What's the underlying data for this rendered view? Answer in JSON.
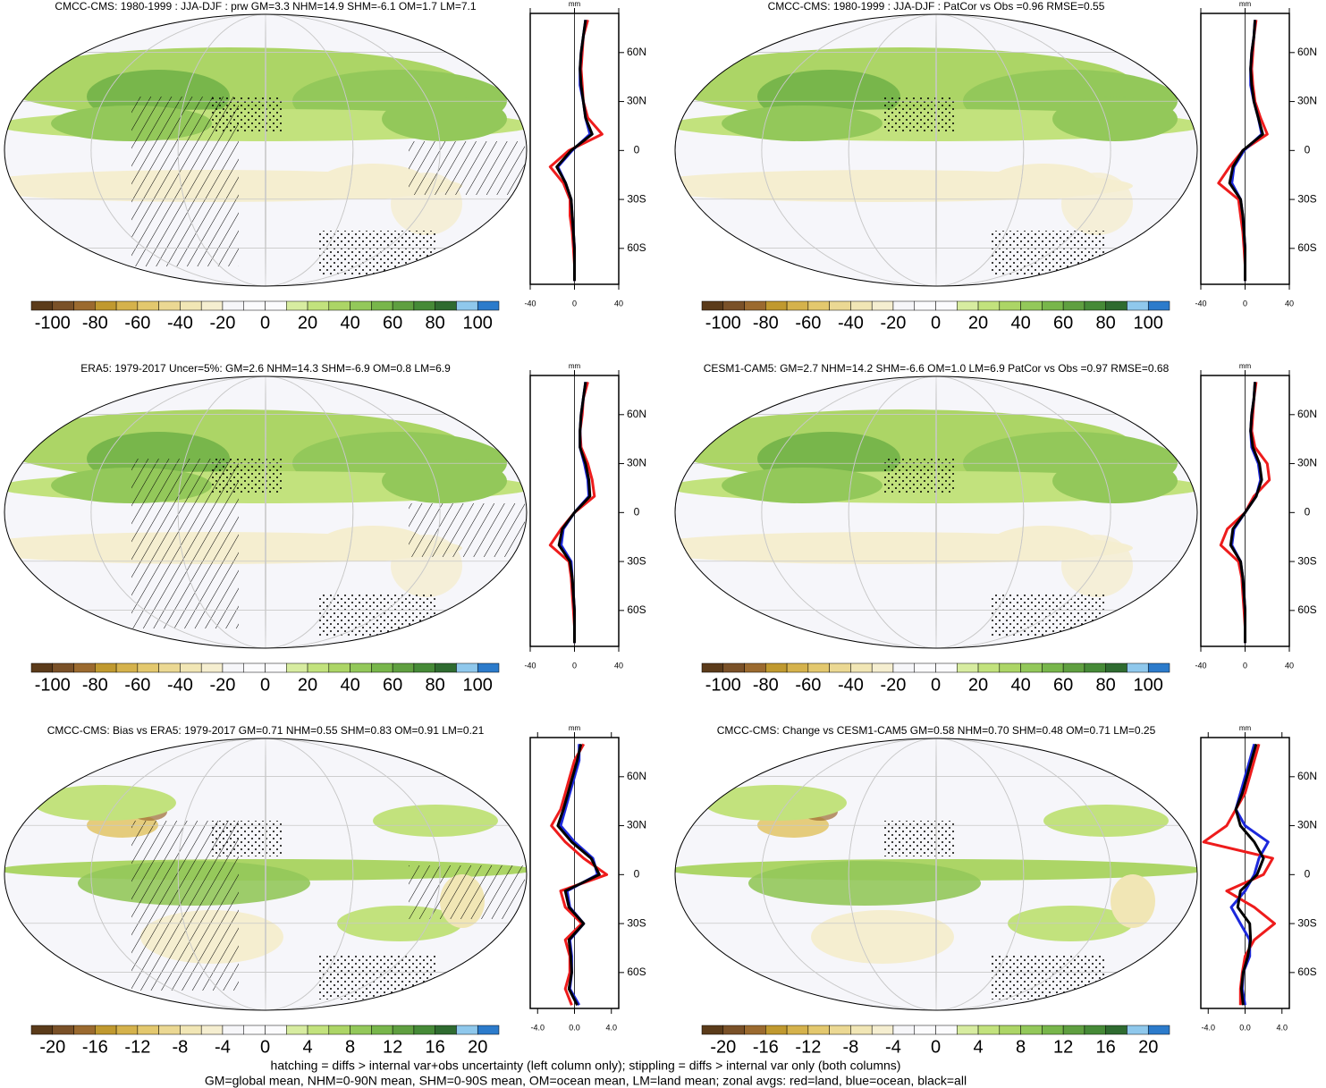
{
  "panels": [
    {
      "title": "CMCC-CMS: 1980-1999 : JJA-DJF : prw GM=3.3 NHM=14.9 SHM=-6.1 OM=1.7 LM=7.1",
      "colorbar": [
        -100,
        -80,
        -60,
        -40,
        -20,
        0,
        20,
        40,
        60,
        80,
        100
      ],
      "profile": {
        "unit": "mm",
        "xlim": [
          -40,
          40
        ],
        "xticks": [
          -40,
          0,
          40
        ],
        "ylim": [
          -82,
          84
        ],
        "yticks": [
          {
            "value": 60,
            "label": "60N"
          },
          {
            "value": 30,
            "label": "30N"
          },
          0,
          {
            "value": -30,
            "label": "30S"
          },
          {
            "value": -60,
            "label": "60S"
          }
        ],
        "lat": [
          -80,
          -70,
          -60,
          -50,
          -40,
          -30,
          -20,
          -10,
          0,
          10,
          20,
          30,
          40,
          50,
          60,
          70,
          80
        ],
        "series": [
          {
            "color": "#ee1c1c",
            "values": [
              0,
              0,
              -1,
              -2,
              -4,
              -4,
              -10,
              -22,
              -5,
              25,
              12,
              8,
              7,
              6,
              7,
              8,
              12
            ]
          },
          {
            "color": "#1c28dc",
            "values": [
              0,
              0,
              0,
              -1,
              -2,
              -3,
              -8,
              -15,
              -2,
              14,
              10,
              8,
              5,
              5,
              6,
              8,
              10
            ]
          },
          {
            "color": "#000000",
            "values": [
              0,
              0,
              0,
              -1,
              -2,
              -3,
              -8,
              -16,
              -3,
              16,
              10,
              8,
              6,
              5,
              6,
              8,
              10
            ]
          }
        ]
      }
    },
    {
      "title": "CMCC-CMS: 1980-1999 : JJA-DJF : PatCor vs Obs =0.96 RMSE=0.55",
      "colorbar": [
        -100,
        -80,
        -60,
        -40,
        -20,
        0,
        20,
        40,
        60,
        80,
        100
      ],
      "profile": {
        "unit": "mm",
        "xlim": [
          -40,
          40
        ],
        "xticks": [
          -40,
          0,
          40
        ],
        "ylim": [
          -82,
          84
        ],
        "yticks": [
          {
            "value": 60,
            "label": "60N"
          },
          {
            "value": 30,
            "label": "30N"
          },
          0,
          {
            "value": -30,
            "label": "30S"
          },
          {
            "value": -60,
            "label": "60S"
          }
        ],
        "lat": [
          -80,
          -70,
          -60,
          -50,
          -40,
          -30,
          -20,
          -10,
          0,
          10,
          20,
          30,
          40,
          50,
          60,
          70,
          80
        ],
        "series": [
          {
            "color": "#ee1c1c",
            "values": [
              0,
              0,
              -1,
              -2,
              -4,
              -6,
              -24,
              -14,
              -2,
              20,
              14,
              9,
              7,
              6,
              7,
              8,
              10
            ]
          },
          {
            "color": "#1c28dc",
            "values": [
              0,
              0,
              0,
              -1,
              -2,
              -4,
              -12,
              -10,
              -1,
              15,
              12,
              8,
              5,
              5,
              6,
              8,
              9
            ]
          },
          {
            "color": "#000000",
            "values": [
              0,
              0,
              0,
              -1,
              -2,
              -4,
              -14,
              -11,
              -2,
              16,
              12,
              8,
              6,
              5,
              6,
              8,
              9
            ]
          }
        ]
      }
    },
    {
      "title": "ERA5: 1979-2017 Uncer=5%: GM=2.6 NHM=14.3 SHM=-6.9 OM=0.8 LM=6.9",
      "colorbar": [
        -100,
        -80,
        -60,
        -40,
        -20,
        0,
        20,
        40,
        60,
        80,
        100
      ],
      "profile": {
        "unit": "mm",
        "xlim": [
          -40,
          40
        ],
        "xticks": [
          -40,
          0,
          40
        ],
        "ylim": [
          -82,
          84
        ],
        "yticks": [
          {
            "value": 60,
            "label": "60N"
          },
          {
            "value": 30,
            "label": "30N"
          },
          0,
          {
            "value": -30,
            "label": "30S"
          },
          {
            "value": -60,
            "label": "60S"
          }
        ],
        "lat": [
          -80,
          -70,
          -60,
          -50,
          -40,
          -30,
          -20,
          -10,
          0,
          10,
          20,
          30,
          40,
          50,
          60,
          70,
          80
        ],
        "series": [
          {
            "color": "#ee1c1c",
            "values": [
              0,
              0,
              -1,
              -2,
              -3,
              -5,
              -22,
              -12,
              0,
              18,
              16,
              12,
              6,
              5,
              7,
              8,
              12
            ]
          },
          {
            "color": "#1c28dc",
            "values": [
              0,
              0,
              0,
              -1,
              -2,
              -3,
              -12,
              -10,
              0,
              13,
              12,
              9,
              5,
              5,
              6,
              8,
              10
            ]
          },
          {
            "color": "#000000",
            "values": [
              0,
              0,
              0,
              -1,
              -2,
              -4,
              -14,
              -11,
              0,
              14,
              13,
              10,
              5,
              5,
              6,
              8,
              10
            ]
          }
        ]
      }
    },
    {
      "title": "CESM1-CAM5: GM=2.7 NHM=14.2 SHM=-6.6 OM=1.0 LM=6.9 PatCor vs Obs =0.97 RMSE=0.68",
      "colorbar": [
        -100,
        -80,
        -60,
        -40,
        -20,
        0,
        20,
        40,
        60,
        80,
        100
      ],
      "profile": {
        "unit": "mm",
        "xlim": [
          -40,
          40
        ],
        "xticks": [
          -40,
          0,
          40
        ],
        "ylim": [
          -82,
          84
        ],
        "yticks": [
          {
            "value": 60,
            "label": "60N"
          },
          {
            "value": 30,
            "label": "30N"
          },
          0,
          {
            "value": -30,
            "label": "30S"
          },
          {
            "value": -60,
            "label": "60S"
          }
        ],
        "lat": [
          -80,
          -70,
          -60,
          -50,
          -40,
          -30,
          -20,
          -10,
          0,
          10,
          20,
          30,
          40,
          50,
          60,
          70,
          80
        ],
        "series": [
          {
            "color": "#ee1c1c",
            "values": [
              0,
              0,
              -1,
              -2,
              -3,
              -6,
              -22,
              -16,
              0,
              8,
              22,
              20,
              9,
              6,
              7,
              8,
              10
            ]
          },
          {
            "color": "#1c28dc",
            "values": [
              0,
              0,
              0,
              -1,
              -2,
              -4,
              -12,
              -10,
              0,
              10,
              14,
              12,
              6,
              5,
              6,
              8,
              9
            ]
          },
          {
            "color": "#000000",
            "values": [
              0,
              0,
              0,
              -1,
              -2,
              -4,
              -13,
              -11,
              0,
              10,
              15,
              13,
              7,
              5,
              6,
              8,
              9
            ]
          }
        ]
      }
    },
    {
      "title": "CMCC-CMS: Bias vs ERA5: 1979-2017 GM=0.71 NHM=0.55 SHM=0.83 OM=0.91 LM=0.21",
      "colorbar": [
        -20,
        -16,
        -12,
        -8,
        -4,
        0,
        4,
        8,
        12,
        16,
        20
      ],
      "profile": {
        "unit": "mm",
        "xlim": [
          -4.8,
          4.8
        ],
        "xticks": [
          {
            "value": -4,
            "label": "-4.0"
          },
          {
            "value": 0,
            "label": "0.0"
          },
          {
            "value": 4,
            "label": "4.0"
          }
        ],
        "ylim": [
          -82,
          84
        ],
        "yticks": [
          {
            "value": 60,
            "label": "60N"
          },
          {
            "value": 30,
            "label": "30N"
          },
          0,
          {
            "value": -30,
            "label": "30S"
          },
          {
            "value": -60,
            "label": "60S"
          }
        ],
        "lat": [
          -80,
          -70,
          -60,
          -50,
          -40,
          -30,
          -20,
          -10,
          0,
          10,
          20,
          30,
          40,
          50,
          60,
          70,
          80
        ],
        "series": [
          {
            "color": "#ee1c1c",
            "values": [
              -0.3,
              -1,
              -0.5,
              -0.5,
              -1,
              0.8,
              -1,
              -1.5,
              3.5,
              1,
              -1,
              -2.5,
              -1.5,
              -1,
              -0.5,
              0,
              1
            ]
          },
          {
            "color": "#1c28dc",
            "values": [
              0.5,
              -0.5,
              -0.3,
              -0.3,
              -0.5,
              1,
              -0.5,
              -0.8,
              2.5,
              2,
              0,
              -1.5,
              -1,
              -0.5,
              0,
              0.5,
              0.5
            ]
          },
          {
            "color": "#000000",
            "values": [
              0.3,
              -0.6,
              -0.3,
              -0.4,
              -0.6,
              1,
              -0.6,
              -1,
              2.7,
              1.8,
              -0.3,
              -1.8,
              -1.2,
              -0.7,
              -0.2,
              0.3,
              0.7
            ]
          }
        ]
      }
    },
    {
      "title": "CMCC-CMS: Change vs CESM1-CAM5 GM=0.58 NHM=0.70 SHM=0.48 OM=0.71 LM=0.25",
      "colorbar": [
        -20,
        -16,
        -12,
        -8,
        -4,
        0,
        4,
        8,
        12,
        16,
        20
      ],
      "profile": {
        "unit": "mm",
        "xlim": [
          -4.8,
          4.8
        ],
        "xticks": [
          {
            "value": -4,
            "label": "-4.0"
          },
          {
            "value": 0,
            "label": "0.0"
          },
          {
            "value": 4,
            "label": "4.0"
          }
        ],
        "ylim": [
          -82,
          84
        ],
        "yticks": [
          {
            "value": 60,
            "label": "60N"
          },
          {
            "value": 30,
            "label": "30N"
          },
          0,
          {
            "value": -30,
            "label": "30S"
          },
          {
            "value": -60,
            "label": "60S"
          }
        ],
        "lat": [
          -80,
          -70,
          -60,
          -50,
          -40,
          -30,
          -20,
          -10,
          0,
          10,
          20,
          30,
          40,
          50,
          60,
          70,
          80
        ],
        "series": [
          {
            "color": "#ee1c1c",
            "values": [
              -0.5,
              -0.5,
              -0.3,
              0,
              1,
              3.2,
              1,
              -2,
              2,
              3,
              -4.5,
              -2,
              -1,
              0,
              0.5,
              1,
              1.5
            ]
          },
          {
            "color": "#1c28dc",
            "values": [
              0,
              -0.3,
              -0.2,
              0.5,
              0.5,
              -0.5,
              -1.5,
              0,
              1,
              1.5,
              2.5,
              0,
              -1,
              -0.5,
              0,
              0.5,
              1
            ]
          },
          {
            "color": "#000000",
            "values": [
              -0.2,
              -0.4,
              -0.2,
              0.3,
              0.6,
              0.5,
              -0.8,
              -0.5,
              1.3,
              2,
              1,
              -0.5,
              -1,
              -0.3,
              0.2,
              0.7,
              1.2
            ]
          }
        ]
      }
    }
  ],
  "colorbar_colors": [
    "#5b3b1a",
    "#7a5128",
    "#9b6a2f",
    "#c0992f",
    "#d5b24c",
    "#e3c86e",
    "#ebd893",
    "#f1e6b5",
    "#f5eed0",
    "#f6f6f9",
    "#fbfbfd",
    "#fbfbfd",
    "#d7eca0",
    "#c2e27d",
    "#acd566",
    "#93c85a",
    "#78b64b",
    "#5f9f40",
    "#468a37",
    "#2f6b30",
    "#8fc8ec",
    "#2c7bcb"
  ],
  "footnote": [
    "hatching = diffs > internal var+obs uncertainty (left column only); stippling = diffs > internal var only (both columns)",
    "GM=global mean, NHM=0-90N mean, SHM=0-90S mean, OM=ocean mean, LM=land mean; zonal avgs: red=land, blue=ocean, black=all"
  ]
}
